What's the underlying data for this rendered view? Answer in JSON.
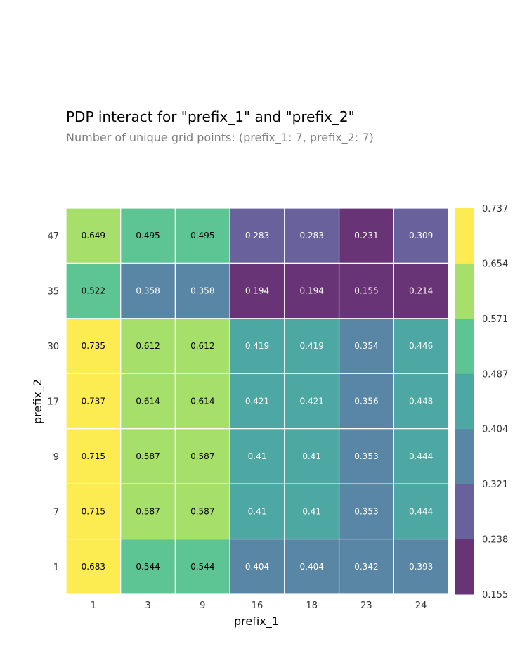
{
  "chart_data": {
    "type": "heatmap",
    "title": "PDP interact for \"prefix_1\" and \"prefix_2\"",
    "subtitle": "Number of unique grid points: (prefix_1: 7, prefix_2: 7)",
    "xlabel": "prefix_1",
    "ylabel": "prefix_2",
    "x_categories": [
      "1",
      "3",
      "9",
      "16",
      "18",
      "23",
      "24"
    ],
    "y_categories": [
      "47",
      "35",
      "30",
      "17",
      "9",
      "7",
      "1"
    ],
    "values": [
      [
        0.649,
        0.495,
        0.495,
        0.283,
        0.283,
        0.231,
        0.309
      ],
      [
        0.522,
        0.358,
        0.358,
        0.194,
        0.194,
        0.155,
        0.214
      ],
      [
        0.735,
        0.612,
        0.612,
        0.419,
        0.419,
        0.354,
        0.446
      ],
      [
        0.737,
        0.614,
        0.614,
        0.421,
        0.421,
        0.356,
        0.448
      ],
      [
        0.715,
        0.587,
        0.587,
        0.41,
        0.41,
        0.353,
        0.444
      ],
      [
        0.715,
        0.587,
        0.587,
        0.41,
        0.41,
        0.353,
        0.444
      ],
      [
        0.683,
        0.544,
        0.544,
        0.404,
        0.404,
        0.342,
        0.393
      ]
    ],
    "colorbar": {
      "min": 0.155,
      "max": 0.737,
      "ticks": [
        "0.737",
        "0.654",
        "0.571",
        "0.487",
        "0.404",
        "0.321",
        "0.238",
        "0.155"
      ],
      "colorscale": "viridis",
      "bands": [
        "#440154",
        "#443983",
        "#31688e",
        "#21918c",
        "#35b779",
        "#90d743",
        "#fde725"
      ]
    },
    "grid": true,
    "legend": "colorbar-right"
  }
}
